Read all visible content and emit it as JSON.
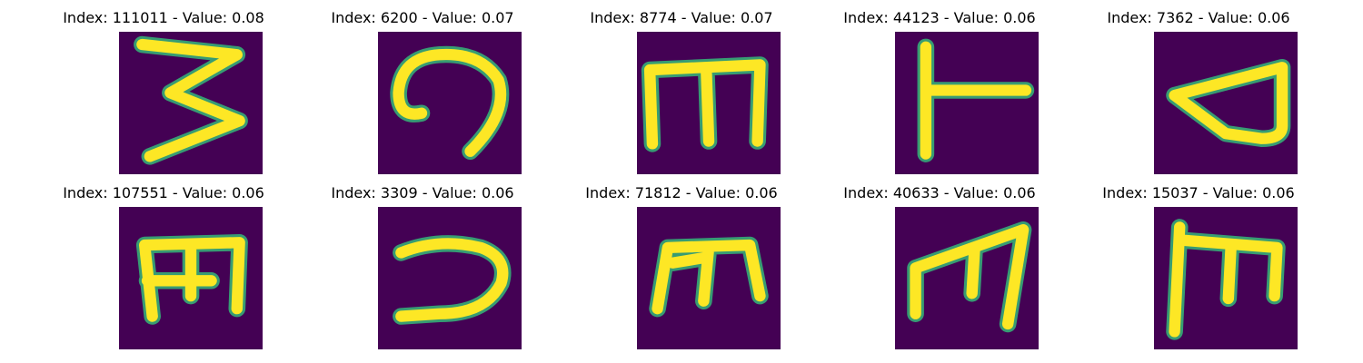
{
  "colors": {
    "background": "#440154",
    "stroke_core": "#fde725",
    "stroke_edge": "#35b779",
    "title_text": "#000000"
  },
  "panels": [
    {
      "title": "Index: 111011 - Value: 0.08",
      "glyph": "3"
    },
    {
      "title": "Index: 6200 - Value: 0.07",
      "glyph": "spiral-hook"
    },
    {
      "title": "Index: 8774 - Value: 0.07",
      "glyph": "m-block"
    },
    {
      "title": "Index: 44123 - Value: 0.06",
      "glyph": "T-rotated"
    },
    {
      "title": "Index: 7362 - Value: 0.06",
      "glyph": "triangle-loop"
    },
    {
      "title": "Index: 107551 - Value: 0.06",
      "glyph": "E-rotated"
    },
    {
      "title": "Index: 3309 - Value: 0.06",
      "glyph": "reversed-c"
    },
    {
      "title": "Index: 71812 - Value: 0.06",
      "glyph": "m-italic"
    },
    {
      "title": "Index: 40633 - Value: 0.06",
      "glyph": "m-slanted"
    },
    {
      "title": "Index: 15037 - Value: 0.06",
      "glyph": "m-tall"
    }
  ]
}
